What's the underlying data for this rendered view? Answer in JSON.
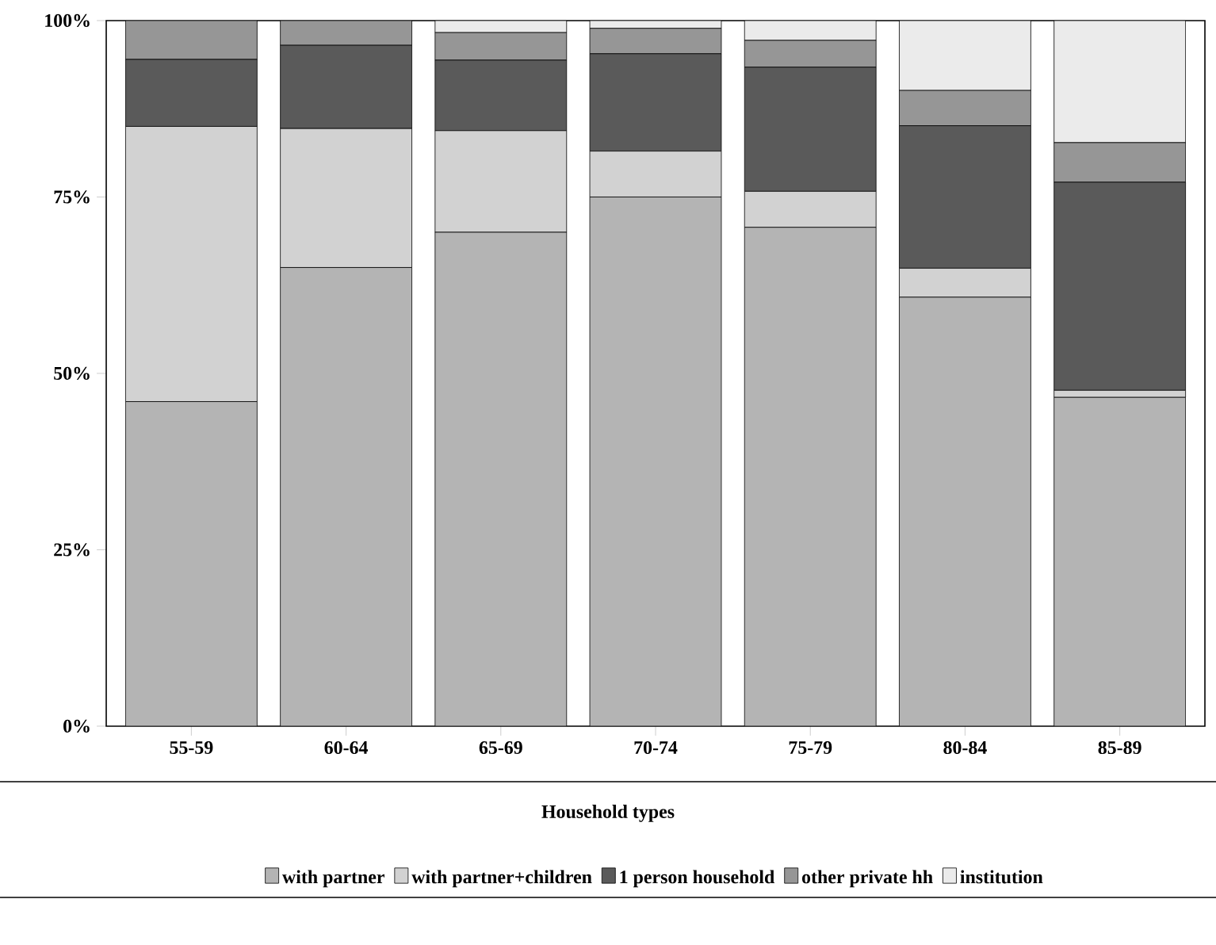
{
  "chart_data": {
    "type": "bar",
    "stacked": true,
    "legend_title": "Household types",
    "legend": "bottom",
    "categories": [
      "55-59",
      "60-64",
      "65-69",
      "70-74",
      "75-79",
      "80-84",
      "85-89"
    ],
    "ylim": [
      0,
      100
    ],
    "yticks": [
      {
        "value": 0,
        "label": "0%"
      },
      {
        "value": 25,
        "label": "25%"
      },
      {
        "value": 50,
        "label": "50%"
      },
      {
        "value": 75,
        "label": "75%"
      },
      {
        "value": 100,
        "label": "100%"
      }
    ],
    "series": [
      {
        "name": "with partner",
        "color": "#b4b4b4",
        "values": [
          46,
          65,
          70,
          75,
          70.7,
          60.8,
          46.6
        ]
      },
      {
        "name": "with partner+children",
        "color": "#d2d2d2",
        "values": [
          39,
          19.7,
          14.4,
          6.5,
          5.1,
          4.1,
          1
        ]
      },
      {
        "name": "1 person household",
        "color": "#5a5a5a",
        "values": [
          9.5,
          11.8,
          10,
          13.8,
          17.6,
          20.2,
          29.5
        ]
      },
      {
        "name": "other private hh",
        "color": "#969696",
        "values": [
          5.5,
          3.5,
          3.9,
          3.6,
          3.8,
          5,
          5.6
        ]
      },
      {
        "name": "institution",
        "color": "#ebebeb",
        "values": [
          0,
          0,
          1.7,
          1.1,
          2.8,
          9.9,
          17.3
        ]
      }
    ]
  }
}
